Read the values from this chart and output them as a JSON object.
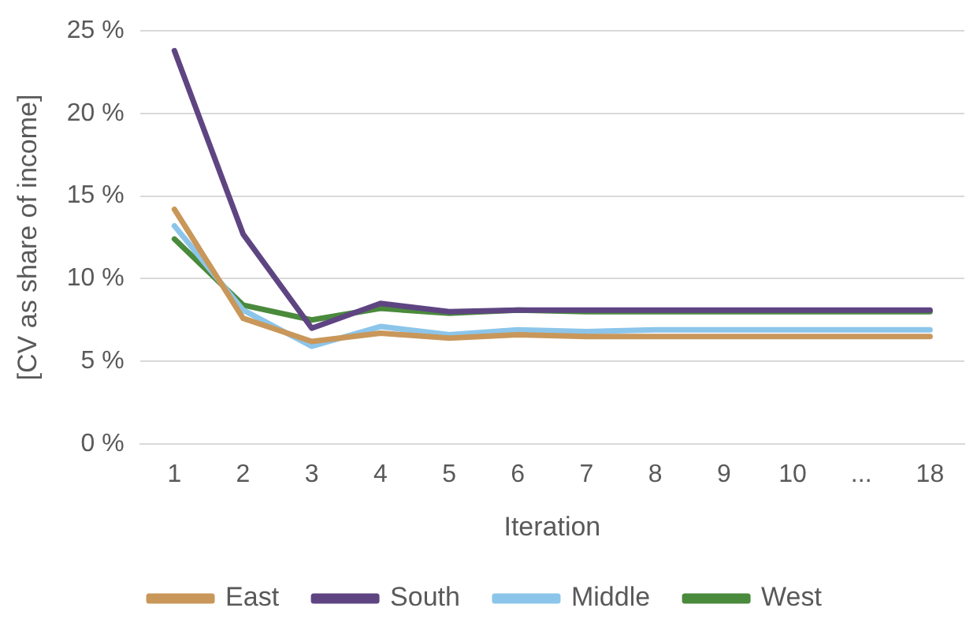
{
  "chart_data": {
    "type": "line",
    "xlabel": "Iteration",
    "ylabel": "[CV as share of income]",
    "categories": [
      "1",
      "2",
      "3",
      "4",
      "5",
      "6",
      "7",
      "8",
      "9",
      "10",
      "...",
      "18"
    ],
    "series": [
      {
        "name": "East",
        "color": "#c9975a",
        "values": [
          14.2,
          7.6,
          6.2,
          6.7,
          6.4,
          6.6,
          6.5,
          6.5,
          6.5,
          6.5,
          6.5,
          6.5
        ]
      },
      {
        "name": "South",
        "color": "#5e4582",
        "values": [
          23.8,
          12.7,
          7.0,
          8.5,
          8.0,
          8.1,
          8.1,
          8.1,
          8.1,
          8.1,
          8.1,
          8.1
        ]
      },
      {
        "name": "Middle",
        "color": "#8cc5ea",
        "values": [
          13.2,
          8.1,
          5.9,
          7.1,
          6.6,
          6.9,
          6.8,
          6.9,
          6.9,
          6.9,
          6.9,
          6.9
        ]
      },
      {
        "name": "West",
        "color": "#4a8a3c",
        "values": [
          12.4,
          8.4,
          7.5,
          8.2,
          7.9,
          8.1,
          8.0,
          8.0,
          8.0,
          8.0,
          8.0,
          8.0
        ]
      }
    ],
    "ylim": [
      0,
      25
    ],
    "yticks": [
      {
        "value": 0,
        "label": "0 %"
      },
      {
        "value": 5,
        "label": "5 %"
      },
      {
        "value": 10,
        "label": "10 %"
      },
      {
        "value": 15,
        "label": "15 %"
      },
      {
        "value": 20,
        "label": "20 %"
      },
      {
        "value": 25,
        "label": "25 %"
      }
    ],
    "grid": "y",
    "legend": "bottom",
    "marker": "none",
    "line_style": "solid"
  }
}
